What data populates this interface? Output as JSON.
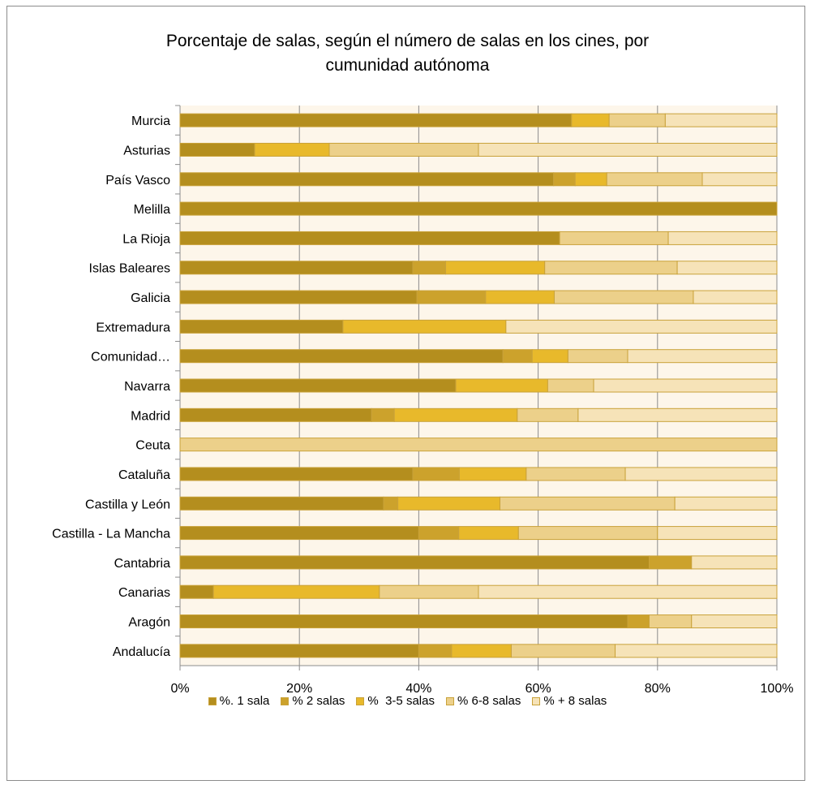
{
  "chart_data": {
    "type": "bar",
    "orientation": "horizontal",
    "stacked": "percent",
    "title_line1": "Porcentaje de salas, según el número de salas en los cines, por",
    "title_line2": "cumunidad autónoma",
    "categories": [
      "Murcia",
      "Asturias",
      "País Vasco",
      "Melilla",
      "La Rioja",
      "Islas Baleares",
      "Galicia",
      "Extremadura",
      "Comunidad…",
      "Navarra",
      "Madrid",
      "Ceuta",
      "Cataluña",
      "Castilla y León",
      "Castilla - La Mancha",
      "Cantabria",
      "Canarias",
      "Aragón",
      "Andalucía"
    ],
    "series": [
      {
        "name": "%. 1 sala",
        "color": "#b48e1e",
        "values": [
          65.6,
          12.5,
          62.6,
          100,
          63.6,
          39.0,
          39.7,
          27.3,
          54.1,
          46.2,
          32.1,
          0,
          39.0,
          34.1,
          40.0,
          78.6,
          5.6,
          75.0,
          40.0
        ]
      },
      {
        "name": "% 2 salas",
        "color": "#cca22c",
        "values": [
          0,
          0,
          3.6,
          0,
          0,
          5.5,
          11.5,
          0,
          4.9,
          0,
          3.8,
          0,
          7.8,
          2.4,
          6.7,
          7.1,
          0,
          3.6,
          5.5
        ]
      },
      {
        "name": "%  3-5 salas",
        "color": "#e8b92b",
        "values": [
          6.3,
          12.5,
          5.3,
          0,
          0,
          16.6,
          11.5,
          27.3,
          6.0,
          15.4,
          20.6,
          0,
          11.2,
          17.1,
          10.0,
          0,
          27.8,
          0,
          10.0
        ]
      },
      {
        "name": "% 6-8 salas",
        "color": "#ecd08a",
        "values": [
          9.4,
          25.0,
          16.0,
          0,
          18.2,
          22.2,
          23.3,
          0,
          10.0,
          7.7,
          10.2,
          100,
          16.6,
          29.3,
          23.3,
          0,
          16.6,
          7.1,
          17.4
        ]
      },
      {
        "name": "% + 8 salas",
        "color": "#f6e3b8",
        "values": [
          18.7,
          50.0,
          12.5,
          0,
          18.2,
          16.7,
          14.0,
          45.4,
          25.0,
          30.7,
          33.3,
          0,
          25.4,
          17.1,
          20.0,
          14.3,
          50.0,
          14.3,
          27.1
        ]
      }
    ],
    "x_ticks": [
      "0%",
      "20%",
      "40%",
      "60%",
      "80%",
      "100%"
    ],
    "xlim": [
      0,
      100
    ],
    "grid": "vertical",
    "legend_position": "bottom"
  }
}
